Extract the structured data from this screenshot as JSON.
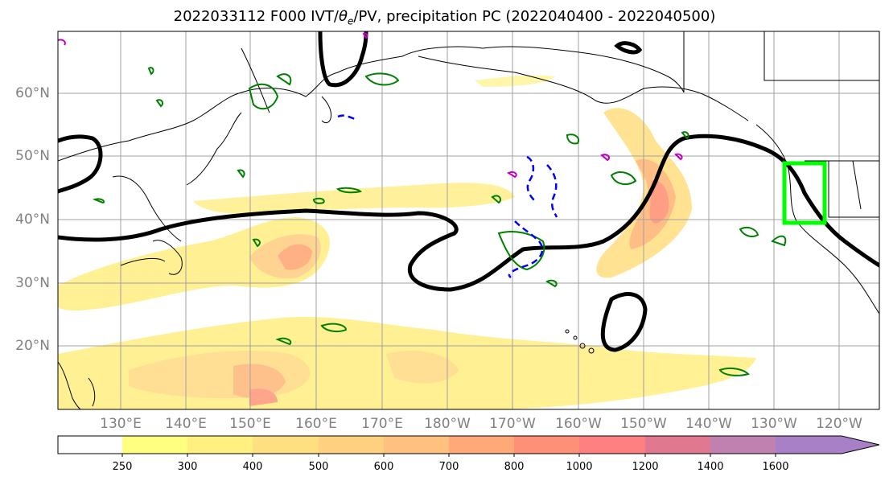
{
  "title": {
    "prefix": "2022033112 F000 IVT/",
    "theta": "θ",
    "theta_sub": "e",
    "suffix": "/PV, precipitation PC (2022040400 - 2022040500)"
  },
  "lat_labels": [
    "60°N",
    "50°N",
    "40°N",
    "30°N",
    "20°N"
  ],
  "lon_labels": [
    "130°E",
    "140°E",
    "150°E",
    "160°E",
    "170°E",
    "180°W",
    "170°W",
    "160°W",
    "150°W",
    "140°W",
    "130°W",
    "120°W"
  ],
  "colorbar": {
    "ticks": [
      "250",
      "300",
      "400",
      "500",
      "600",
      "700",
      "800",
      "1000",
      "1200",
      "1400",
      "1600"
    ],
    "colors": [
      "#ffffff",
      "#ffff80",
      "#fff080",
      "#ffe080",
      "#ffd080",
      "#ffc080",
      "#ffa878",
      "#ff9078",
      "#ff8080",
      "#e07890",
      "#c080b0",
      "#a880c8"
    ]
  },
  "colors": {
    "ivt_fill": "#ffe880",
    "ivt_core": "#ff9070",
    "pv_contour": "#000000",
    "theta_e_pos": "#008000",
    "theta_e_neg": "#0000ff",
    "magenta": "#c000c0",
    "target_box": "#00ff00",
    "gridline": "#a0a0a0",
    "coastline": "#000000"
  }
}
